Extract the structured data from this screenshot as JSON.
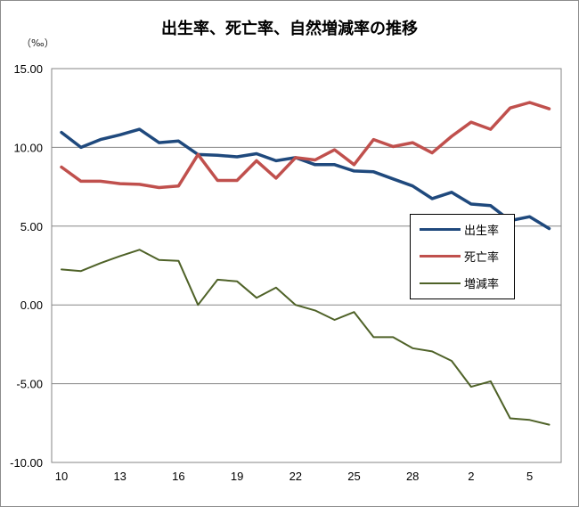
{
  "chart_data": {
    "type": "line",
    "title": "出生率、死亡率、自然増減率の推移",
    "unit_label": "（‰）",
    "ylim": [
      -10,
      15
    ],
    "yticks": [
      "15.00",
      "10.00",
      "5.00",
      "0.00",
      "-5.00",
      "-10.00"
    ],
    "ytick_values": [
      15,
      10,
      5,
      0,
      -5,
      -10
    ],
    "x_tick_labels": [
      "10",
      "13",
      "16",
      "19",
      "22",
      "25",
      "28",
      "2",
      "5"
    ],
    "x_tick_indices": [
      0,
      3,
      6,
      9,
      12,
      15,
      18,
      21,
      24
    ],
    "point_count": 26,
    "legend_position": "right",
    "series": [
      {
        "name": "出生率",
        "color": "#1f497d",
        "values": [
          10.95,
          10.0,
          10.5,
          10.8,
          11.15,
          10.3,
          10.4,
          9.55,
          9.5,
          9.4,
          9.6,
          9.15,
          9.35,
          8.9,
          8.9,
          8.5,
          8.45,
          8.0,
          7.55,
          6.75,
          7.15,
          6.4,
          6.3,
          5.35,
          5.6,
          4.85
        ]
      },
      {
        "name": "死亡率",
        "color": "#c0504d",
        "values": [
          8.75,
          7.85,
          7.85,
          7.7,
          7.65,
          7.45,
          7.55,
          9.55,
          7.9,
          7.9,
          9.15,
          8.05,
          9.35,
          9.2,
          9.85,
          8.9,
          10.5,
          10.05,
          10.3,
          9.65,
          10.7,
          11.6,
          11.15,
          12.5,
          12.85,
          12.45
        ]
      },
      {
        "name": "増減率",
        "color": "#4f6228",
        "values": [
          2.25,
          2.15,
          2.65,
          3.1,
          3.5,
          2.85,
          2.8,
          0.0,
          1.6,
          1.5,
          0.45,
          1.1,
          0.0,
          -0.35,
          -0.95,
          -0.45,
          -2.05,
          -2.05,
          -2.75,
          -2.95,
          -3.55,
          -5.2,
          -4.85,
          -7.2,
          -7.3,
          -7.6
        ]
      }
    ]
  }
}
